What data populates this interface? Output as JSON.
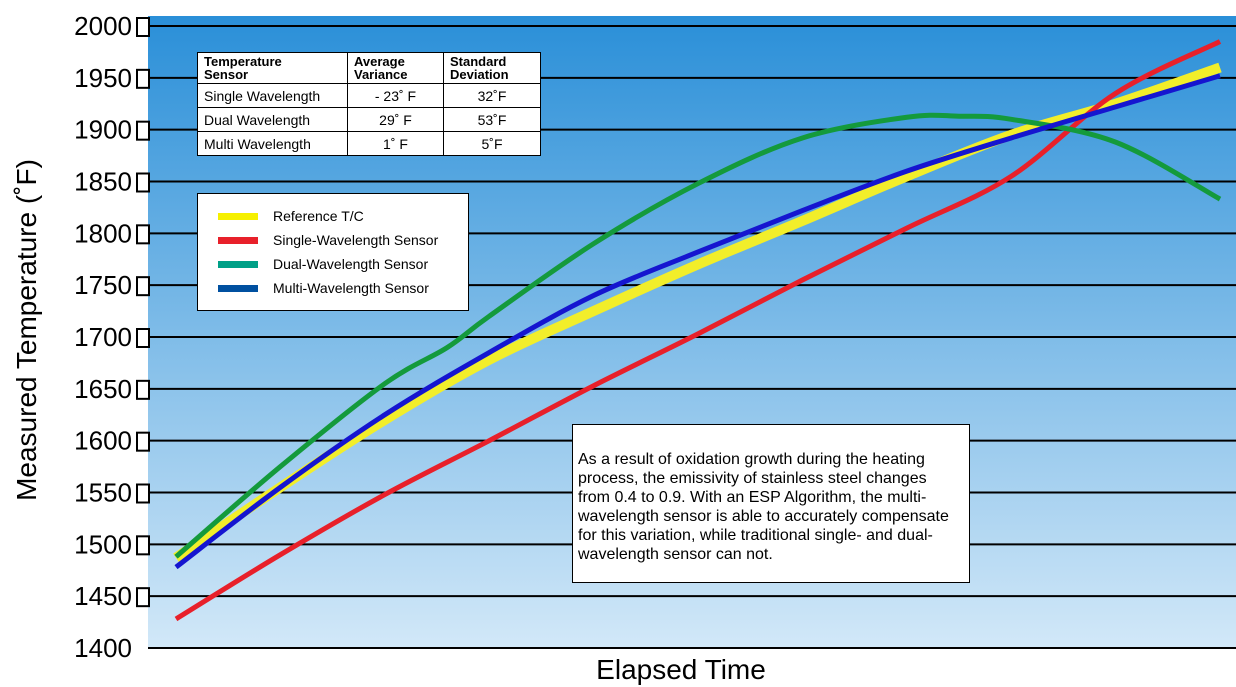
{
  "chart_data": {
    "type": "line",
    "title": "",
    "xlabel": "Elapsed Time",
    "ylabel": "Measured Temperature (˚F)",
    "ylim": [
      1400,
      2000
    ],
    "yticks": [
      1400,
      1450,
      1500,
      1550,
      1600,
      1650,
      1700,
      1750,
      1800,
      1850,
      1900,
      1950,
      2000
    ],
    "ytick_labels": [
      "1400",
      "1450",
      "1500",
      "1550",
      "1600",
      "1650",
      "1700",
      "1750",
      "1800",
      "1850",
      "1900",
      "1950",
      "2000"
    ],
    "xlim": [
      0,
      100
    ],
    "grid": true,
    "legend_position": "upper-left",
    "series": [
      {
        "name": "Reference T/C",
        "color": "#f2ee2a",
        "line_width": 10,
        "x": [
          0,
          10,
          20,
          30,
          40,
          50,
          60,
          70,
          80,
          90,
          100
        ],
        "y": [
          1487,
          1555,
          1620,
          1678,
          1725,
          1770,
          1812,
          1855,
          1895,
          1925,
          1960
        ]
      },
      {
        "name": "Single-Wavelength Sensor",
        "color": "#e8202a",
        "line_width": 5,
        "x": [
          0,
          10,
          20,
          30,
          40,
          50,
          60,
          70,
          80,
          90,
          100
        ],
        "y": [
          1428,
          1490,
          1548,
          1600,
          1653,
          1703,
          1755,
          1805,
          1855,
          1935,
          1985
        ]
      },
      {
        "name": "Dual-Wavelength Sensor",
        "color": "#149a3c",
        "line_width": 5,
        "x": [
          0,
          10,
          20,
          26,
          30,
          40,
          50,
          60,
          70,
          75,
          80,
          90,
          100
        ],
        "y": [
          1488,
          1575,
          1655,
          1690,
          1720,
          1790,
          1848,
          1892,
          1912,
          1913,
          1910,
          1888,
          1833
        ]
      },
      {
        "name": "Multi-Wavelength Sensor",
        "color": "#1515d0",
        "line_width": 5,
        "x": [
          0,
          10,
          20,
          30,
          40,
          50,
          60,
          70,
          80,
          90,
          100
        ],
        "y": [
          1478,
          1555,
          1625,
          1685,
          1740,
          1782,
          1822,
          1860,
          1892,
          1922,
          1952
        ]
      }
    ],
    "annotation": "As a result of oxidation growth during the heating process, the emissivity of stainless steel changes from 0.4 to 0.9. With an ESP Algorithm, the multi-wavelength sensor is able to accurately compensate for this variation, while traditional single- and dual-wavelength sensor can not."
  },
  "legend": [
    {
      "label": "Reference T/C",
      "color": "#f6f000"
    },
    {
      "label": "Single-Wavelength Sensor",
      "color": "#e8202a"
    },
    {
      "label": "Dual-Wavelength Sensor",
      "color": "#00a087"
    },
    {
      "label": "Multi-Wavelength Sensor",
      "color": "#0050a0"
    }
  ],
  "stats_table": {
    "headers": [
      {
        "line1": "Temperature",
        "line2": "Sensor"
      },
      {
        "line1": "Average",
        "line2": "Variance"
      },
      {
        "line1": "Standard",
        "line2": "Deviation"
      }
    ],
    "rows": [
      {
        "sensor": "Single Wavelength",
        "avg_variance": "- 23˚ F",
        "std_dev": "32˚F"
      },
      {
        "sensor": "Dual Wavelength",
        "avg_variance": "29˚ F",
        "std_dev": "53˚F"
      },
      {
        "sensor": "Multi Wavelength",
        "avg_variance": "1˚ F",
        "std_dev": "5˚F"
      }
    ]
  },
  "colors": {
    "plot_top": "#2a8fd8",
    "plot_bottom": "#d2e8f8",
    "gridline": "#000000"
  }
}
